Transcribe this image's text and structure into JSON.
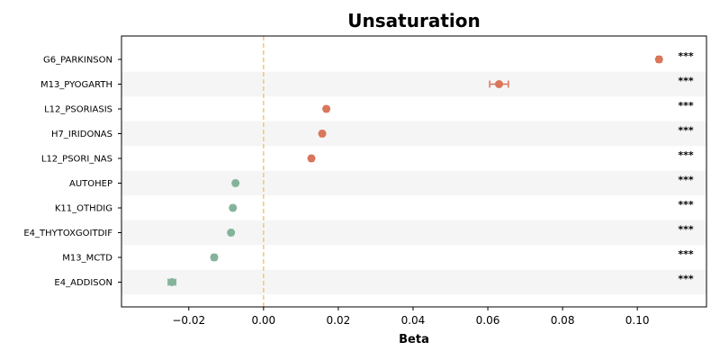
{
  "chart_data": {
    "type": "scatter",
    "title": "Unsaturation",
    "xlabel": "Beta",
    "ylabel": "",
    "xlim": [
      -0.038,
      0.1185
    ],
    "xticks": [
      -0.02,
      0.0,
      0.02,
      0.04,
      0.06,
      0.08,
      0.1
    ],
    "xtick_labels": [
      "−0.02",
      "0.00",
      "0.02",
      "0.04",
      "0.06",
      "0.08",
      "0.10"
    ],
    "reference_line": 0,
    "grid": false,
    "row_banding": true,
    "colors": {
      "positive": "#d9765b",
      "negative": "#84b39b",
      "reference": "#f2c57c",
      "band": "#f5f5f5"
    },
    "points": [
      {
        "label": "G6_PARKINSON",
        "beta": 0.1058,
        "ci": [
          0.1052,
          0.1064
        ],
        "sig": "***"
      },
      {
        "label": "M13_PYOGARTH",
        "beta": 0.063,
        "ci": [
          0.0605,
          0.0655
        ],
        "sig": "***"
      },
      {
        "label": "L12_PSORIASIS",
        "beta": 0.0168,
        "ci": [
          0.0163,
          0.0173
        ],
        "sig": "***"
      },
      {
        "label": "H7_IRIDONAS",
        "beta": 0.0157,
        "ci": [
          0.0152,
          0.0162
        ],
        "sig": "***"
      },
      {
        "label": "L12_PSORI_NAS",
        "beta": 0.0128,
        "ci": [
          0.0123,
          0.0133
        ],
        "sig": "***"
      },
      {
        "label": "AUTOHEP",
        "beta": -0.0075,
        "ci": [
          -0.008,
          -0.007
        ],
        "sig": "***"
      },
      {
        "label": "K11_OTHDIG",
        "beta": -0.0082,
        "ci": [
          -0.0087,
          -0.0077
        ],
        "sig": "***"
      },
      {
        "label": "E4_THYTOXGOITDIF",
        "beta": -0.0087,
        "ci": [
          -0.0092,
          -0.0082
        ],
        "sig": "***"
      },
      {
        "label": "M13_MCTD",
        "beta": -0.0132,
        "ci": [
          -0.0138,
          -0.0126
        ],
        "sig": "***"
      },
      {
        "label": "E4_ADDISON",
        "beta": -0.0245,
        "ci": [
          -0.0255,
          -0.0235
        ],
        "sig": "***"
      }
    ]
  }
}
